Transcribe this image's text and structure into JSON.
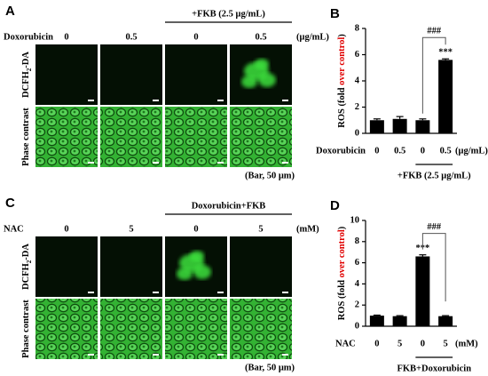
{
  "panels": [
    {
      "label": "A",
      "group_label": "+FKB (2.5 μg/mL)",
      "group_span": [
        2,
        3
      ],
      "row_label": "Doxorubicin",
      "columns": [
        "0",
        "0.5",
        "0",
        "0.5"
      ],
      "unit": "(μg/mL)",
      "rows": [
        [
          "DCFH",
          "2",
          "-DA"
        ],
        [
          "Phase contrast"
        ]
      ],
      "scale_note": "(Bar, 50 μm)"
    },
    {
      "label": "C",
      "group_label": "Doxorubicin+FKB",
      "group_span": [
        2,
        3
      ],
      "row_label": "NAC",
      "columns": [
        "0",
        "5",
        "0",
        "5"
      ],
      "unit": "(mM)",
      "rows": [
        [
          "DCFH",
          "2",
          "-DA"
        ],
        [
          "Phase contrast"
        ]
      ],
      "scale_note": "(Bar, 50 μm)"
    }
  ],
  "chart_data": [
    {
      "type": "bar",
      "panel_label": "B",
      "ylabel_parts": [
        "ROS (fold ",
        "over control",
        ")"
      ],
      "row_label": "Doxorubicin",
      "unit": "(μg/mL)",
      "categories": [
        "0",
        "0.5",
        "0",
        "0.5"
      ],
      "values": [
        1.0,
        1.1,
        1.0,
        5.6
      ],
      "errors": [
        0.1,
        0.18,
        0.1,
        0.08
      ],
      "color": "#000000",
      "significance": [
        null,
        null,
        null,
        "***"
      ],
      "comparisons": [
        {
          "pair": [
            2,
            3
          ],
          "label": "###"
        }
      ],
      "groups": [
        {
          "span": [
            2,
            3
          ],
          "label": "+FKB (2.5 μg/mL)"
        }
      ],
      "ylim": [
        0,
        8
      ],
      "yticks": [
        0,
        2,
        4,
        6,
        8
      ]
    },
    {
      "type": "bar",
      "panel_label": "D",
      "ylabel_parts": [
        "ROS (fold ",
        "over control",
        ")"
      ],
      "row_label": "NAC",
      "unit": "(mM)",
      "categories": [
        "0",
        "5",
        "0",
        "5"
      ],
      "values": [
        1.0,
        0.95,
        6.6,
        0.95
      ],
      "errors": [
        0.05,
        0.05,
        0.15,
        0.05
      ],
      "color": "#000000",
      "significance": [
        null,
        null,
        "***",
        null
      ],
      "comparisons": [
        {
          "pair": [
            2,
            3
          ],
          "label": "###"
        }
      ],
      "groups": [
        {
          "span": [
            2,
            3
          ],
          "label": "FKB+Doxorubicin"
        }
      ],
      "ylim": [
        0,
        10
      ],
      "yticks": [
        0,
        2,
        4,
        6,
        8,
        10
      ]
    }
  ]
}
